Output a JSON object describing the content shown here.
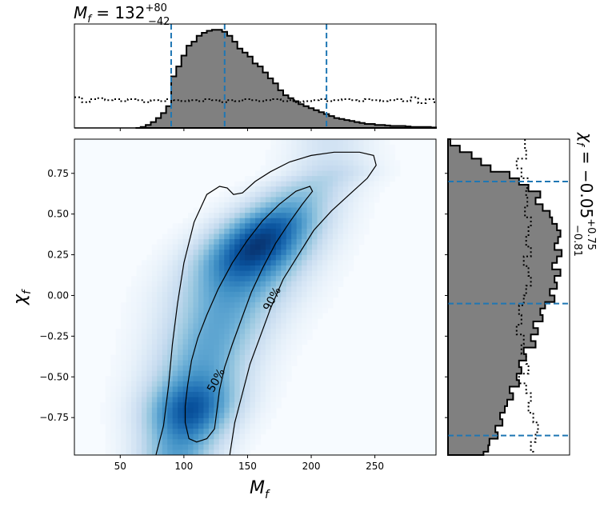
{
  "chart_data": [
    {
      "type": "heatmap",
      "panel": "joint",
      "xlabel": "M_f",
      "ylabel": "χ_f",
      "xlim": [
        14,
        298
      ],
      "ylim": [
        -0.98,
        0.96
      ],
      "xticks": [
        50,
        100,
        150,
        200,
        250
      ],
      "xtick_labels": [
        "50",
        "100",
        "150",
        "200",
        "250"
      ],
      "yticks": [
        -0.75,
        -0.5,
        -0.25,
        0.0,
        0.25,
        0.5,
        0.75
      ],
      "ytick_labels": [
        "−0.75",
        "−0.50",
        "−0.25",
        "0.00",
        "0.25",
        "0.50",
        "0.75"
      ],
      "colormap": "Blues",
      "contour_levels": [
        {
          "label": "50%"
        },
        {
          "label": "90%"
        }
      ],
      "contour_90": [
        [
          78,
          -0.98
        ],
        [
          84,
          -0.8
        ],
        [
          88,
          -0.55
        ],
        [
          91,
          -0.3
        ],
        [
          95,
          -0.05
        ],
        [
          100,
          0.2
        ],
        [
          108,
          0.45
        ],
        [
          118,
          0.62
        ],
        [
          128,
          0.67
        ],
        [
          134,
          0.66
        ],
        [
          139,
          0.62
        ],
        [
          146,
          0.63
        ],
        [
          156,
          0.7
        ],
        [
          168,
          0.76
        ],
        [
          183,
          0.82
        ],
        [
          200,
          0.86
        ],
        [
          218,
          0.88
        ],
        [
          238,
          0.88
        ],
        [
          249,
          0.86
        ],
        [
          251,
          0.8
        ],
        [
          244,
          0.72
        ],
        [
          230,
          0.62
        ],
        [
          216,
          0.52
        ],
        [
          202,
          0.4
        ],
        [
          190,
          0.25
        ],
        [
          178,
          0.1
        ],
        [
          168,
          -0.08
        ],
        [
          160,
          -0.25
        ],
        [
          152,
          -0.42
        ],
        [
          146,
          -0.6
        ],
        [
          140,
          -0.78
        ],
        [
          136,
          -0.98
        ]
      ],
      "contour_50": [
        [
          101,
          -0.78
        ],
        [
          104,
          -0.88
        ],
        [
          110,
          -0.9
        ],
        [
          118,
          -0.88
        ],
        [
          124,
          -0.82
        ],
        [
          126,
          -0.7
        ],
        [
          128,
          -0.58
        ],
        [
          132,
          -0.44
        ],
        [
          138,
          -0.3
        ],
        [
          145,
          -0.15
        ],
        [
          153,
          0.02
        ],
        [
          162,
          0.17
        ],
        [
          172,
          0.32
        ],
        [
          183,
          0.45
        ],
        [
          193,
          0.56
        ],
        [
          201,
          0.64
        ],
        [
          199,
          0.67
        ],
        [
          188,
          0.64
        ],
        [
          175,
          0.56
        ],
        [
          162,
          0.46
        ],
        [
          150,
          0.34
        ],
        [
          138,
          0.2
        ],
        [
          127,
          0.04
        ],
        [
          118,
          -0.12
        ],
        [
          111,
          -0.26
        ],
        [
          106,
          -0.4
        ],
        [
          103,
          -0.55
        ],
        [
          101,
          -0.68
        ]
      ]
    },
    {
      "type": "histogram",
      "panel": "top-marginal",
      "title": "M_f = 132 +80 −42",
      "title_main": "M",
      "title_sub": "f",
      "title_value": " = 132",
      "title_sup": "+80",
      "title_low": "−42",
      "xlim": [
        14,
        298
      ],
      "quantile_lines": [
        90,
        132,
        212
      ],
      "series": [
        {
          "name": "posterior",
          "style": "filled-step",
          "edges": [
            62,
            66,
            70,
            74,
            78,
            82,
            86,
            90,
            94,
            98,
            102,
            106,
            110,
            114,
            118,
            122,
            126,
            130,
            134,
            138,
            142,
            146,
            150,
            154,
            158,
            162,
            166,
            170,
            174,
            178,
            182,
            186,
            190,
            194,
            198,
            202,
            206,
            210,
            214,
            218,
            222,
            226,
            230,
            234,
            238,
            242,
            246,
            250,
            254,
            258,
            262,
            266,
            270,
            274,
            278,
            282,
            286,
            290,
            294,
            298
          ],
          "values": [
            0.0,
            0.01,
            0.03,
            0.06,
            0.1,
            0.15,
            0.22,
            0.52,
            0.62,
            0.73,
            0.83,
            0.87,
            0.93,
            0.96,
            0.98,
            0.99,
            0.99,
            0.97,
            0.93,
            0.87,
            0.8,
            0.76,
            0.72,
            0.65,
            0.62,
            0.56,
            0.5,
            0.45,
            0.38,
            0.33,
            0.3,
            0.27,
            0.24,
            0.22,
            0.2,
            0.18,
            0.16,
            0.14,
            0.12,
            0.1,
            0.09,
            0.08,
            0.07,
            0.06,
            0.05,
            0.04,
            0.04,
            0.03,
            0.03,
            0.025,
            0.02,
            0.02,
            0.02,
            0.015,
            0.01,
            0.01,
            0.01,
            0.01,
            0.005
          ]
        },
        {
          "name": "prior",
          "style": "dotted-step",
          "edges": [
            14,
            20,
            26,
            32,
            38,
            44,
            50,
            56,
            62,
            68,
            74,
            80,
            86,
            92,
            98,
            104,
            110,
            116,
            122,
            128,
            134,
            140,
            146,
            152,
            158,
            164,
            170,
            176,
            182,
            188,
            194,
            200,
            206,
            212,
            218,
            224,
            230,
            236,
            242,
            248,
            254,
            260,
            266,
            272,
            278,
            284,
            290,
            296,
            298
          ],
          "values": [
            0.31,
            0.26,
            0.29,
            0.3,
            0.28,
            0.29,
            0.27,
            0.29,
            0.28,
            0.26,
            0.28,
            0.27,
            0.29,
            0.28,
            0.27,
            0.28,
            0.27,
            0.29,
            0.28,
            0.26,
            0.28,
            0.27,
            0.29,
            0.28,
            0.27,
            0.28,
            0.29,
            0.27,
            0.28,
            0.26,
            0.27,
            0.28,
            0.29,
            0.27,
            0.28,
            0.29,
            0.28,
            0.27,
            0.29,
            0.28,
            0.27,
            0.28,
            0.29,
            0.27,
            0.31,
            0.25,
            0.29,
            0.26
          ]
        }
      ]
    },
    {
      "type": "histogram",
      "panel": "right-marginal",
      "orientation": "horizontal",
      "title": "χ_f = −0.05 +0.75 −0.81",
      "title_main": "χ",
      "title_sub": "f",
      "title_value": " = −0.05",
      "title_sup": "+0.75",
      "title_low": "−0.81",
      "ylim": [
        -0.98,
        0.96
      ],
      "quantile_lines": [
        0.7,
        -0.05,
        -0.86
      ],
      "series": [
        {
          "name": "posterior",
          "style": "filled-step",
          "edges": [
            0.96,
            0.92,
            0.88,
            0.84,
            0.8,
            0.76,
            0.72,
            0.68,
            0.64,
            0.6,
            0.56,
            0.52,
            0.48,
            0.44,
            0.4,
            0.36,
            0.32,
            0.28,
            0.24,
            0.2,
            0.16,
            0.12,
            0.08,
            0.04,
            0.0,
            -0.04,
            -0.08,
            -0.12,
            -0.16,
            -0.2,
            -0.24,
            -0.28,
            -0.32,
            -0.36,
            -0.4,
            -0.44,
            -0.48,
            -0.52,
            -0.56,
            -0.6,
            -0.64,
            -0.68,
            -0.72,
            -0.76,
            -0.8,
            -0.84,
            -0.88,
            -0.92,
            -0.96,
            -0.98
          ],
          "values": [
            0.02,
            0.1,
            0.2,
            0.28,
            0.36,
            0.52,
            0.6,
            0.68,
            0.78,
            0.74,
            0.8,
            0.86,
            0.88,
            0.92,
            0.95,
            0.93,
            0.9,
            0.96,
            0.92,
            0.88,
            0.95,
            0.9,
            0.92,
            0.86,
            0.9,
            0.82,
            0.78,
            0.8,
            0.72,
            0.76,
            0.7,
            0.74,
            0.64,
            0.66,
            0.6,
            0.62,
            0.58,
            0.6,
            0.52,
            0.55,
            0.5,
            0.48,
            0.44,
            0.46,
            0.4,
            0.42,
            0.35,
            0.34,
            0.3
          ]
        },
        {
          "name": "prior",
          "style": "dotted-step",
          "edges": [
            0.96,
            0.9,
            0.84,
            0.78,
            0.72,
            0.66,
            0.6,
            0.54,
            0.48,
            0.42,
            0.36,
            0.3,
            0.24,
            0.18,
            0.12,
            0.06,
            0.0,
            -0.06,
            -0.12,
            -0.18,
            -0.24,
            -0.3,
            -0.36,
            -0.42,
            -0.48,
            -0.54,
            -0.6,
            -0.66,
            -0.72,
            -0.78,
            -0.84,
            -0.9,
            -0.96,
            -0.98
          ],
          "values": [
            0.65,
            0.66,
            0.58,
            0.62,
            0.68,
            0.66,
            0.67,
            0.65,
            0.7,
            0.68,
            0.66,
            0.7,
            0.64,
            0.68,
            0.7,
            0.66,
            0.64,
            0.6,
            0.62,
            0.58,
            0.64,
            0.62,
            0.66,
            0.68,
            0.6,
            0.66,
            0.7,
            0.68,
            0.72,
            0.76,
            0.74,
            0.7,
            0.72
          ]
        }
      ]
    }
  ],
  "colors": {
    "hist_fill": "#808080",
    "hist_edge": "#000000",
    "quantile_line": "#1f77b4",
    "contour": "#000000",
    "cmap_low": "#f7fbff",
    "cmap_high": "#08306b"
  }
}
